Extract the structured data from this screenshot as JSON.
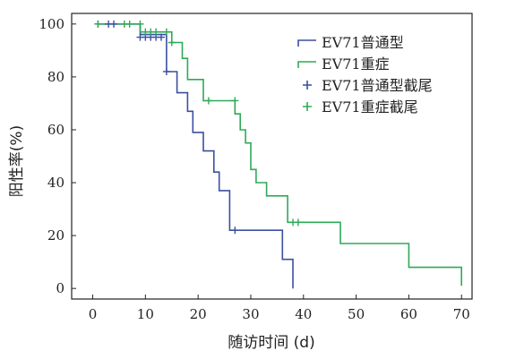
{
  "chart_data": {
    "type": "line",
    "step": true,
    "xlabel": "随访时间 (d)",
    "ylabel": "阳性率(%)",
    "xlim": [
      -4,
      72
    ],
    "ylim": [
      -4,
      104
    ],
    "xticks": [
      "0",
      "10",
      "20",
      "30",
      "40",
      "50",
      "60",
      "70"
    ],
    "yticks": [
      "0",
      "20",
      "40",
      "60",
      "80",
      "100"
    ],
    "grid": false,
    "legend_position": "top-right",
    "series": [
      {
        "name": "EV71普通型",
        "color": "#3b4fa0",
        "kind": "curve",
        "points": [
          [
            1,
            100
          ],
          [
            9,
            100
          ],
          [
            9,
            96
          ],
          [
            14,
            96
          ],
          [
            14,
            82
          ],
          [
            16,
            82
          ],
          [
            16,
            74
          ],
          [
            18,
            74
          ],
          [
            18,
            67
          ],
          [
            19,
            67
          ],
          [
            19,
            59
          ],
          [
            21,
            59
          ],
          [
            21,
            52
          ],
          [
            23,
            52
          ],
          [
            23,
            44
          ],
          [
            24,
            44
          ],
          [
            24,
            37
          ],
          [
            26,
            37
          ],
          [
            26,
            22
          ],
          [
            36,
            22
          ],
          [
            36,
            11
          ],
          [
            38,
            11
          ],
          [
            38,
            0
          ]
        ]
      },
      {
        "name": "EV71重症",
        "color": "#2eaa57",
        "kind": "curve",
        "points": [
          [
            1,
            100
          ],
          [
            9,
            100
          ],
          [
            9,
            97
          ],
          [
            15,
            97
          ],
          [
            15,
            93
          ],
          [
            17,
            93
          ],
          [
            17,
            87
          ],
          [
            18,
            87
          ],
          [
            18,
            79
          ],
          [
            21,
            79
          ],
          [
            21,
            71
          ],
          [
            27,
            71
          ],
          [
            27,
            66
          ],
          [
            28,
            66
          ],
          [
            28,
            60
          ],
          [
            29,
            60
          ],
          [
            29,
            55
          ],
          [
            30,
            55
          ],
          [
            30,
            45
          ],
          [
            31,
            45
          ],
          [
            31,
            40
          ],
          [
            33,
            40
          ],
          [
            33,
            35
          ],
          [
            37,
            35
          ],
          [
            37,
            25
          ],
          [
            47,
            25
          ],
          [
            47,
            17
          ],
          [
            60,
            17
          ],
          [
            60,
            8
          ],
          [
            70,
            8
          ],
          [
            70,
            1
          ]
        ]
      },
      {
        "name": "EV71普通型截尾",
        "color": "#3b4fa0",
        "kind": "censor",
        "points": [
          [
            1,
            100
          ],
          [
            3,
            100
          ],
          [
            4,
            100
          ],
          [
            9,
            95
          ],
          [
            10,
            95
          ],
          [
            11,
            95
          ],
          [
            12,
            95
          ],
          [
            13,
            95
          ],
          [
            14,
            82
          ],
          [
            27,
            22
          ]
        ]
      },
      {
        "name": "EV71重症截尾",
        "color": "#2eaa57",
        "kind": "censor",
        "points": [
          [
            1,
            100
          ],
          [
            6,
            100
          ],
          [
            7,
            100
          ],
          [
            9,
            100
          ],
          [
            10,
            97
          ],
          [
            11,
            97
          ],
          [
            12,
            97
          ],
          [
            14,
            97
          ],
          [
            15,
            93
          ],
          [
            22,
            71
          ],
          [
            27,
            71
          ],
          [
            38,
            25
          ],
          [
            39,
            25
          ]
        ]
      }
    ]
  }
}
